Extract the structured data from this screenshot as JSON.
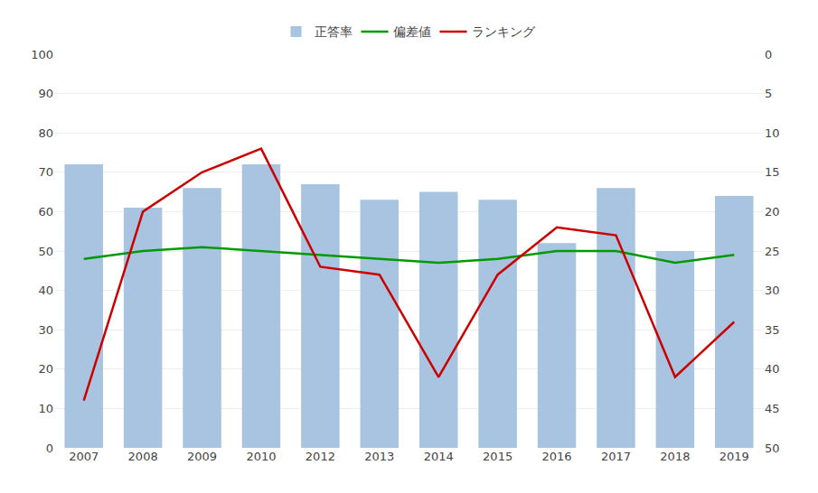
{
  "chart_data": {
    "type": "bar",
    "categories": [
      "2007",
      "2008",
      "2009",
      "2010",
      "2012",
      "2013",
      "2014",
      "2015",
      "2016",
      "2017",
      "2018",
      "2019"
    ],
    "series": [
      {
        "name": "正答率",
        "type": "bar",
        "color": "#a8c4e0",
        "values": [
          72,
          61,
          66,
          72,
          67,
          63,
          65,
          63,
          52,
          66,
          50,
          64
        ]
      },
      {
        "name": "偏差値",
        "type": "line",
        "color": "#009900",
        "values": [
          48,
          50,
          51,
          50,
          49,
          48,
          47,
          48,
          50,
          50,
          47,
          49
        ]
      },
      {
        "name": "ランキング",
        "type": "line",
        "color": "#cc0000",
        "axis": "y2",
        "values": [
          44,
          20,
          15,
          12,
          27,
          28,
          41,
          28,
          22,
          23,
          41,
          34
        ]
      }
    ],
    "ylim": [
      0,
      100
    ],
    "yticks": [
      0,
      10,
      20,
      30,
      40,
      50,
      60,
      70,
      80,
      90,
      100
    ],
    "y2lim": [
      50,
      0
    ],
    "y2ticks": [
      0,
      5,
      10,
      15,
      20,
      25,
      30,
      35,
      40,
      45,
      50
    ],
    "grid": true,
    "legend": "top"
  }
}
